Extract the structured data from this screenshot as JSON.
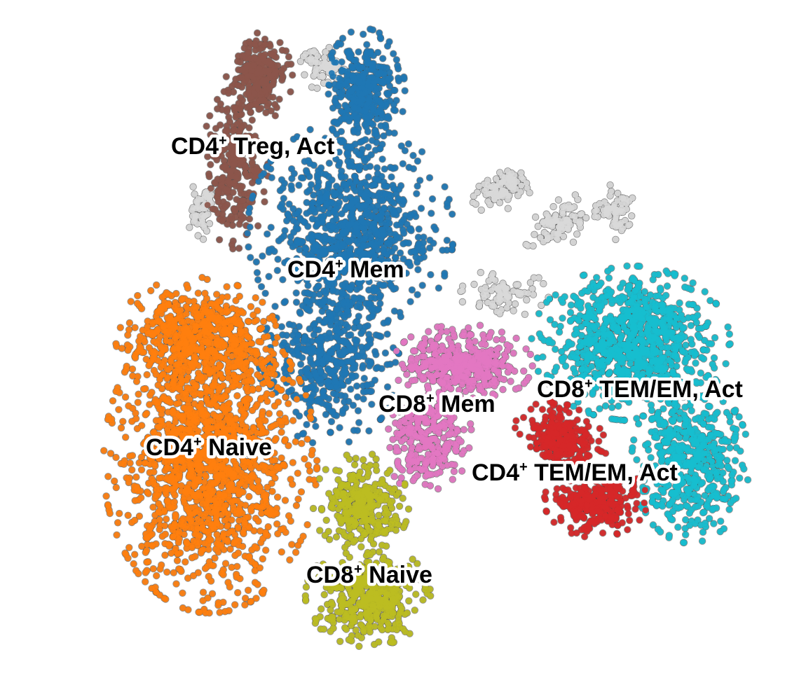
{
  "chart_data": {
    "type": "scatter",
    "title": "",
    "xlabel": "",
    "ylabel": "",
    "grid": false,
    "legend": "none",
    "series": [
      {
        "name": "CD4⁺ Treg, Act",
        "label_base": "CD4",
        "label_sup": "+",
        "label_rest": " Treg, Act",
        "color": "#8c564b",
        "key": "treg"
      },
      {
        "name": "CD4⁺ Mem",
        "label_base": "CD4",
        "label_sup": "+",
        "label_rest": " Mem",
        "color": "#1f77b4",
        "key": "cd4mem"
      },
      {
        "name": "CD4⁺ Naive",
        "label_base": "CD4",
        "label_sup": "+",
        "label_rest": " Naive",
        "color": "#ff7f0e",
        "key": "cd4naive"
      },
      {
        "name": "CD8⁺ Mem",
        "label_base": "CD8",
        "label_sup": "+",
        "label_rest": " Mem",
        "color": "#e377c2",
        "key": "cd8mem"
      },
      {
        "name": "CD8⁺ TEM/EM, Act",
        "label_base": "CD8",
        "label_sup": "+",
        "label_rest": " TEM/EM, Act",
        "color": "#17becf",
        "key": "cd8tem"
      },
      {
        "name": "CD4⁺ TEM/EM, Act",
        "label_base": "CD4",
        "label_sup": "+",
        "label_rest": " TEM/EM, Act",
        "color": "#d62728",
        "key": "cd4tem"
      },
      {
        "name": "CD8⁺ Naive",
        "label_base": "CD8",
        "label_sup": "+",
        "label_rest": " Naive",
        "color": "#bcbd22",
        "key": "cd8naive"
      },
      {
        "name": "",
        "label_base": "",
        "label_sup": "",
        "label_rest": "",
        "color": "#d9d9d9",
        "key": "unlabeled"
      }
    ],
    "point_outline_color": "#333333"
  }
}
